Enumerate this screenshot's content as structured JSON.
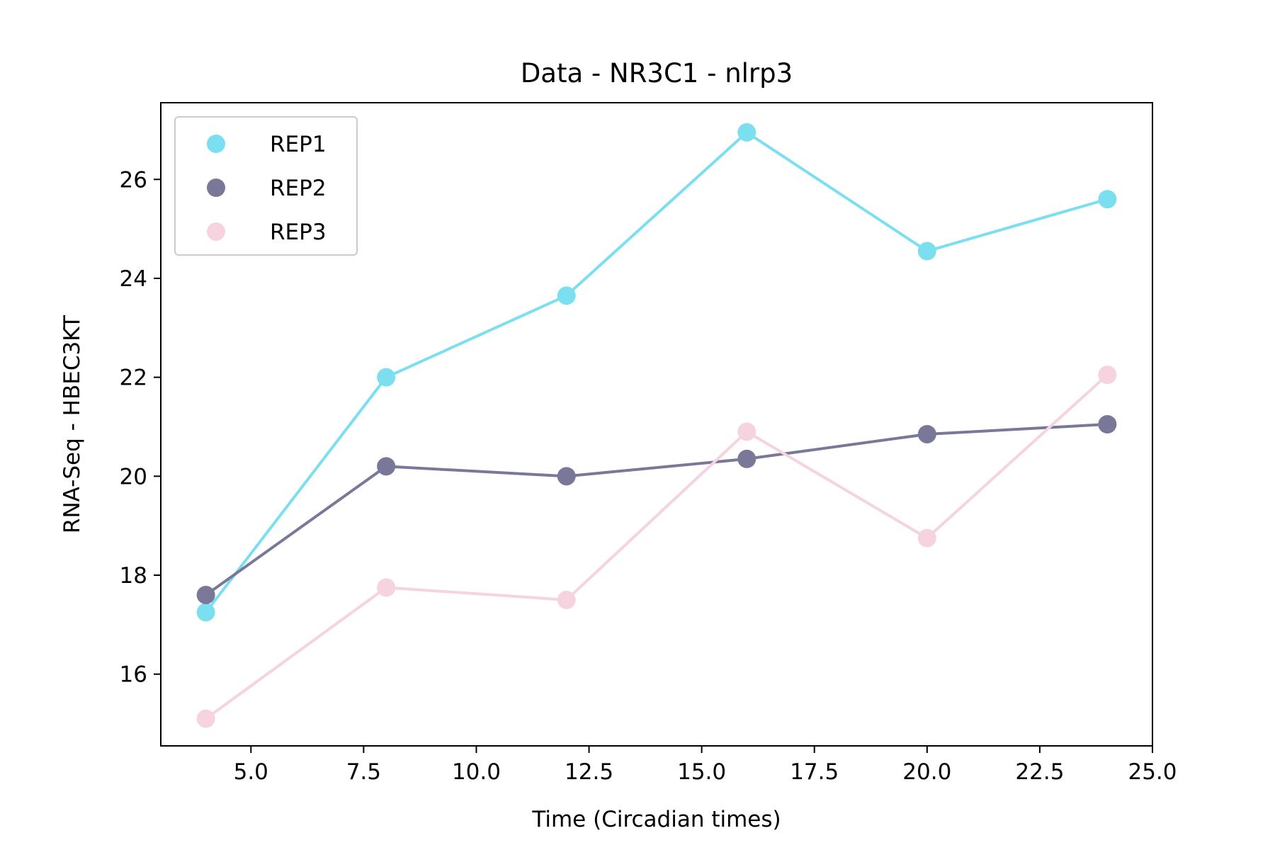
{
  "chart_data": {
    "type": "line",
    "title": "Data - NR3C1 - nlrp3",
    "xlabel": "Time (Circadian times)",
    "ylabel": "RNA-Seq - HBEC3KT",
    "x": [
      4,
      8,
      12,
      16,
      20,
      24
    ],
    "xlim": [
      3.0,
      25.0
    ],
    "ylim": [
      14.55,
      27.55
    ],
    "xticks": [
      5.0,
      7.5,
      10.0,
      12.5,
      15.0,
      17.5,
      20.0,
      22.5,
      25.0
    ],
    "xtick_labels": [
      "5.0",
      "7.5",
      "10.0",
      "12.5",
      "15.0",
      "17.5",
      "20.0",
      "22.5",
      "25.0"
    ],
    "yticks": [
      16,
      18,
      20,
      22,
      24,
      26
    ],
    "ytick_labels": [
      "16",
      "18",
      "20",
      "22",
      "24",
      "26"
    ],
    "grid": false,
    "legend_position": "upper-left",
    "series": [
      {
        "name": "REP1",
        "color": "#7cdfef",
        "values": [
          17.25,
          22.0,
          23.65,
          26.95,
          24.55,
          25.6
        ]
      },
      {
        "name": "REP2",
        "color": "#7a7898",
        "values": [
          17.6,
          20.2,
          20.0,
          20.35,
          20.85,
          21.05
        ]
      },
      {
        "name": "REP3",
        "color": "#f5d3df",
        "values": [
          15.1,
          17.75,
          17.5,
          20.9,
          18.75,
          22.05
        ]
      }
    ]
  }
}
